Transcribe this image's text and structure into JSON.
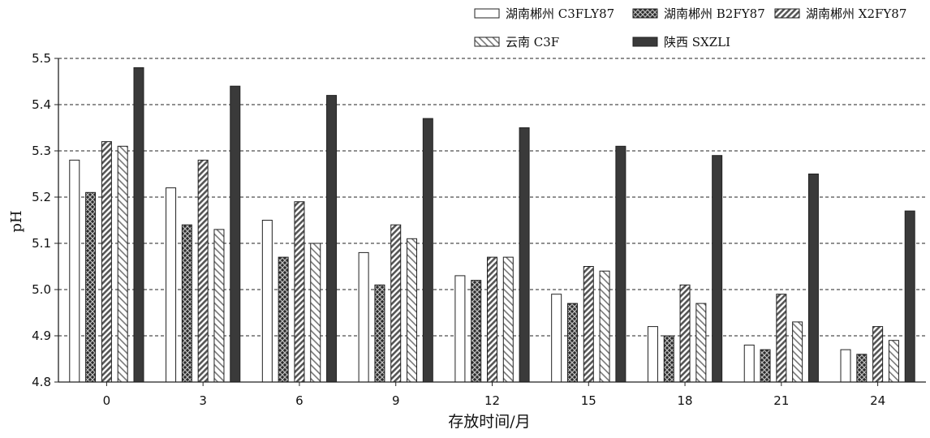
{
  "chart_data": {
    "type": "bar",
    "categories": [
      "0",
      "3",
      "6",
      "9",
      "12",
      "15",
      "18",
      "21",
      "24"
    ],
    "series": [
      {
        "name": "湖南郴州 C3FLY87",
        "pattern": "solid-white",
        "values": [
          5.28,
          5.22,
          5.15,
          5.08,
          5.03,
          4.99,
          4.92,
          4.88,
          4.87
        ]
      },
      {
        "name": "湖南郴州 B2FY87",
        "pattern": "dark-crosshatch",
        "values": [
          5.21,
          5.14,
          5.07,
          5.01,
          5.02,
          4.97,
          4.9,
          4.87,
          4.86
        ]
      },
      {
        "name": "湖南郴州 X2FY87",
        "pattern": "dense-diagonal",
        "values": [
          5.32,
          5.28,
          5.19,
          5.14,
          5.07,
          5.05,
          5.01,
          4.99,
          4.92
        ]
      },
      {
        "name": "云南 C3F",
        "pattern": "light-diagonal",
        "values": [
          5.31,
          5.13,
          5.1,
          5.11,
          5.07,
          5.04,
          4.97,
          4.93,
          4.89
        ]
      },
      {
        "name": "陕西 SXZLI",
        "pattern": "solid-dark",
        "values": [
          5.48,
          5.44,
          5.42,
          5.37,
          5.35,
          5.31,
          5.29,
          5.25,
          5.17
        ]
      }
    ],
    "title": "",
    "xlabel": "存放时间/月",
    "ylabel": "pH",
    "ylim": [
      4.8,
      5.5
    ],
    "yticks": [
      "4.8",
      "4.9",
      "5.0",
      "5.1",
      "5.2",
      "5.3",
      "5.4",
      "5.5"
    ],
    "grid": "horizontal dashed",
    "legend_position": "top-right",
    "colors": {
      "dark": "#3a3a3a",
      "outline": "#222222",
      "light": "#ffffff"
    }
  }
}
